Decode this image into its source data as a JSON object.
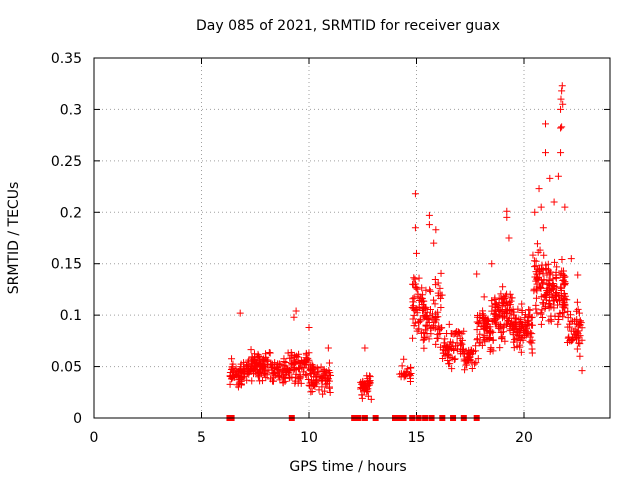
{
  "chart_data": {
    "type": "scatter",
    "title": "Day 085 of 2021, SRMTID for receiver guax",
    "xlabel": "GPS time / hours",
    "ylabel": "SRMTID / TECUs",
    "xlim": [
      0,
      24
    ],
    "ylim": [
      0,
      0.35
    ],
    "xticks": [
      {
        "value": 0,
        "label": "0"
      },
      {
        "value": 5,
        "label": "5"
      },
      {
        "value": 10,
        "label": "10"
      },
      {
        "value": 15,
        "label": "15"
      },
      {
        "value": 20,
        "label": "20"
      }
    ],
    "yticks": [
      {
        "value": 0,
        "label": "0"
      },
      {
        "value": 0.05,
        "label": "0.05"
      },
      {
        "value": 0.1,
        "label": "0.1"
      },
      {
        "value": 0.15,
        "label": "0.15"
      },
      {
        "value": 0.2,
        "label": "0.2"
      },
      {
        "value": 0.25,
        "label": "0.25"
      },
      {
        "value": 0.3,
        "label": "0.3"
      },
      {
        "value": 0.35,
        "label": "0.35"
      }
    ],
    "grid": true,
    "series_color": "#ff0000",
    "marker": "plus",
    "zero_markers_x": [
      6.3,
      6.4,
      9.2,
      12.1,
      12.3,
      12.6,
      13.1,
      14.0,
      14.2,
      14.4,
      14.8,
      15.1,
      15.4,
      15.7,
      16.2,
      16.7,
      17.2,
      17.8
    ],
    "clusters": [
      {
        "x0": 6.3,
        "x1": 7.0,
        "n": 55,
        "yCenter": 0.042,
        "ySpread": 0.018
      },
      {
        "x0": 7.0,
        "x1": 8.3,
        "n": 110,
        "yCenter": 0.05,
        "ySpread": 0.02
      },
      {
        "x0": 8.3,
        "x1": 9.0,
        "n": 45,
        "yCenter": 0.045,
        "ySpread": 0.018
      },
      {
        "x0": 9.0,
        "x1": 10.0,
        "n": 70,
        "yCenter": 0.05,
        "ySpread": 0.022
      },
      {
        "x0": 10.0,
        "x1": 11.0,
        "n": 75,
        "yCenter": 0.04,
        "ySpread": 0.02
      },
      {
        "x0": 12.4,
        "x1": 12.9,
        "n": 45,
        "yCenter": 0.03,
        "ySpread": 0.014
      },
      {
        "x0": 14.2,
        "x1": 14.8,
        "n": 20,
        "yCenter": 0.045,
        "ySpread": 0.015
      },
      {
        "x0": 14.8,
        "x1": 15.3,
        "n": 45,
        "yCenter": 0.11,
        "ySpread": 0.05
      },
      {
        "x0": 15.3,
        "x1": 16.2,
        "n": 75,
        "yCenter": 0.1,
        "ySpread": 0.045
      },
      {
        "x0": 16.2,
        "x1": 17.2,
        "n": 65,
        "yCenter": 0.07,
        "ySpread": 0.025
      },
      {
        "x0": 17.2,
        "x1": 17.8,
        "n": 35,
        "yCenter": 0.06,
        "ySpread": 0.02
      },
      {
        "x0": 17.8,
        "x1": 18.6,
        "n": 70,
        "yCenter": 0.085,
        "ySpread": 0.035
      },
      {
        "x0": 18.6,
        "x1": 19.5,
        "n": 95,
        "yCenter": 0.1,
        "ySpread": 0.035
      },
      {
        "x0": 19.5,
        "x1": 20.4,
        "n": 90,
        "yCenter": 0.085,
        "ySpread": 0.03
      },
      {
        "x0": 20.4,
        "x1": 21.2,
        "n": 85,
        "yCenter": 0.13,
        "ySpread": 0.05
      },
      {
        "x0": 21.2,
        "x1": 22.0,
        "n": 85,
        "yCenter": 0.12,
        "ySpread": 0.045
      },
      {
        "x0": 22.0,
        "x1": 22.7,
        "n": 50,
        "yCenter": 0.09,
        "ySpread": 0.03
      }
    ],
    "highlights": [
      {
        "x": 6.8,
        "y": 0.102
      },
      {
        "x": 9.4,
        "y": 0.104
      },
      {
        "x": 9.3,
        "y": 0.098
      },
      {
        "x": 10.0,
        "y": 0.088
      },
      {
        "x": 10.9,
        "y": 0.068
      },
      {
        "x": 12.6,
        "y": 0.068
      },
      {
        "x": 14.95,
        "y": 0.218
      },
      {
        "x": 14.95,
        "y": 0.185
      },
      {
        "x": 15.0,
        "y": 0.16
      },
      {
        "x": 15.6,
        "y": 0.197
      },
      {
        "x": 15.6,
        "y": 0.188
      },
      {
        "x": 15.9,
        "y": 0.183
      },
      {
        "x": 15.8,
        "y": 0.17
      },
      {
        "x": 17.8,
        "y": 0.14
      },
      {
        "x": 18.5,
        "y": 0.15
      },
      {
        "x": 19.2,
        "y": 0.201
      },
      {
        "x": 19.2,
        "y": 0.195
      },
      {
        "x": 19.3,
        "y": 0.175
      },
      {
        "x": 20.5,
        "y": 0.2
      },
      {
        "x": 20.7,
        "y": 0.223
      },
      {
        "x": 20.8,
        "y": 0.205
      },
      {
        "x": 20.9,
        "y": 0.185
      },
      {
        "x": 21.0,
        "y": 0.258
      },
      {
        "x": 21.0,
        "y": 0.286
      },
      {
        "x": 21.2,
        "y": 0.233
      },
      {
        "x": 21.4,
        "y": 0.21
      },
      {
        "x": 21.6,
        "y": 0.235
      },
      {
        "x": 21.7,
        "y": 0.258
      },
      {
        "x": 21.7,
        "y": 0.282
      },
      {
        "x": 21.75,
        "y": 0.283
      },
      {
        "x": 21.7,
        "y": 0.3
      },
      {
        "x": 21.72,
        "y": 0.31
      },
      {
        "x": 21.75,
        "y": 0.318
      },
      {
        "x": 21.78,
        "y": 0.323
      },
      {
        "x": 21.8,
        "y": 0.305
      },
      {
        "x": 21.9,
        "y": 0.205
      },
      {
        "x": 22.2,
        "y": 0.155
      },
      {
        "x": 22.5,
        "y": 0.139
      },
      {
        "x": 22.6,
        "y": 0.06
      },
      {
        "x": 22.7,
        "y": 0.046
      }
    ]
  }
}
